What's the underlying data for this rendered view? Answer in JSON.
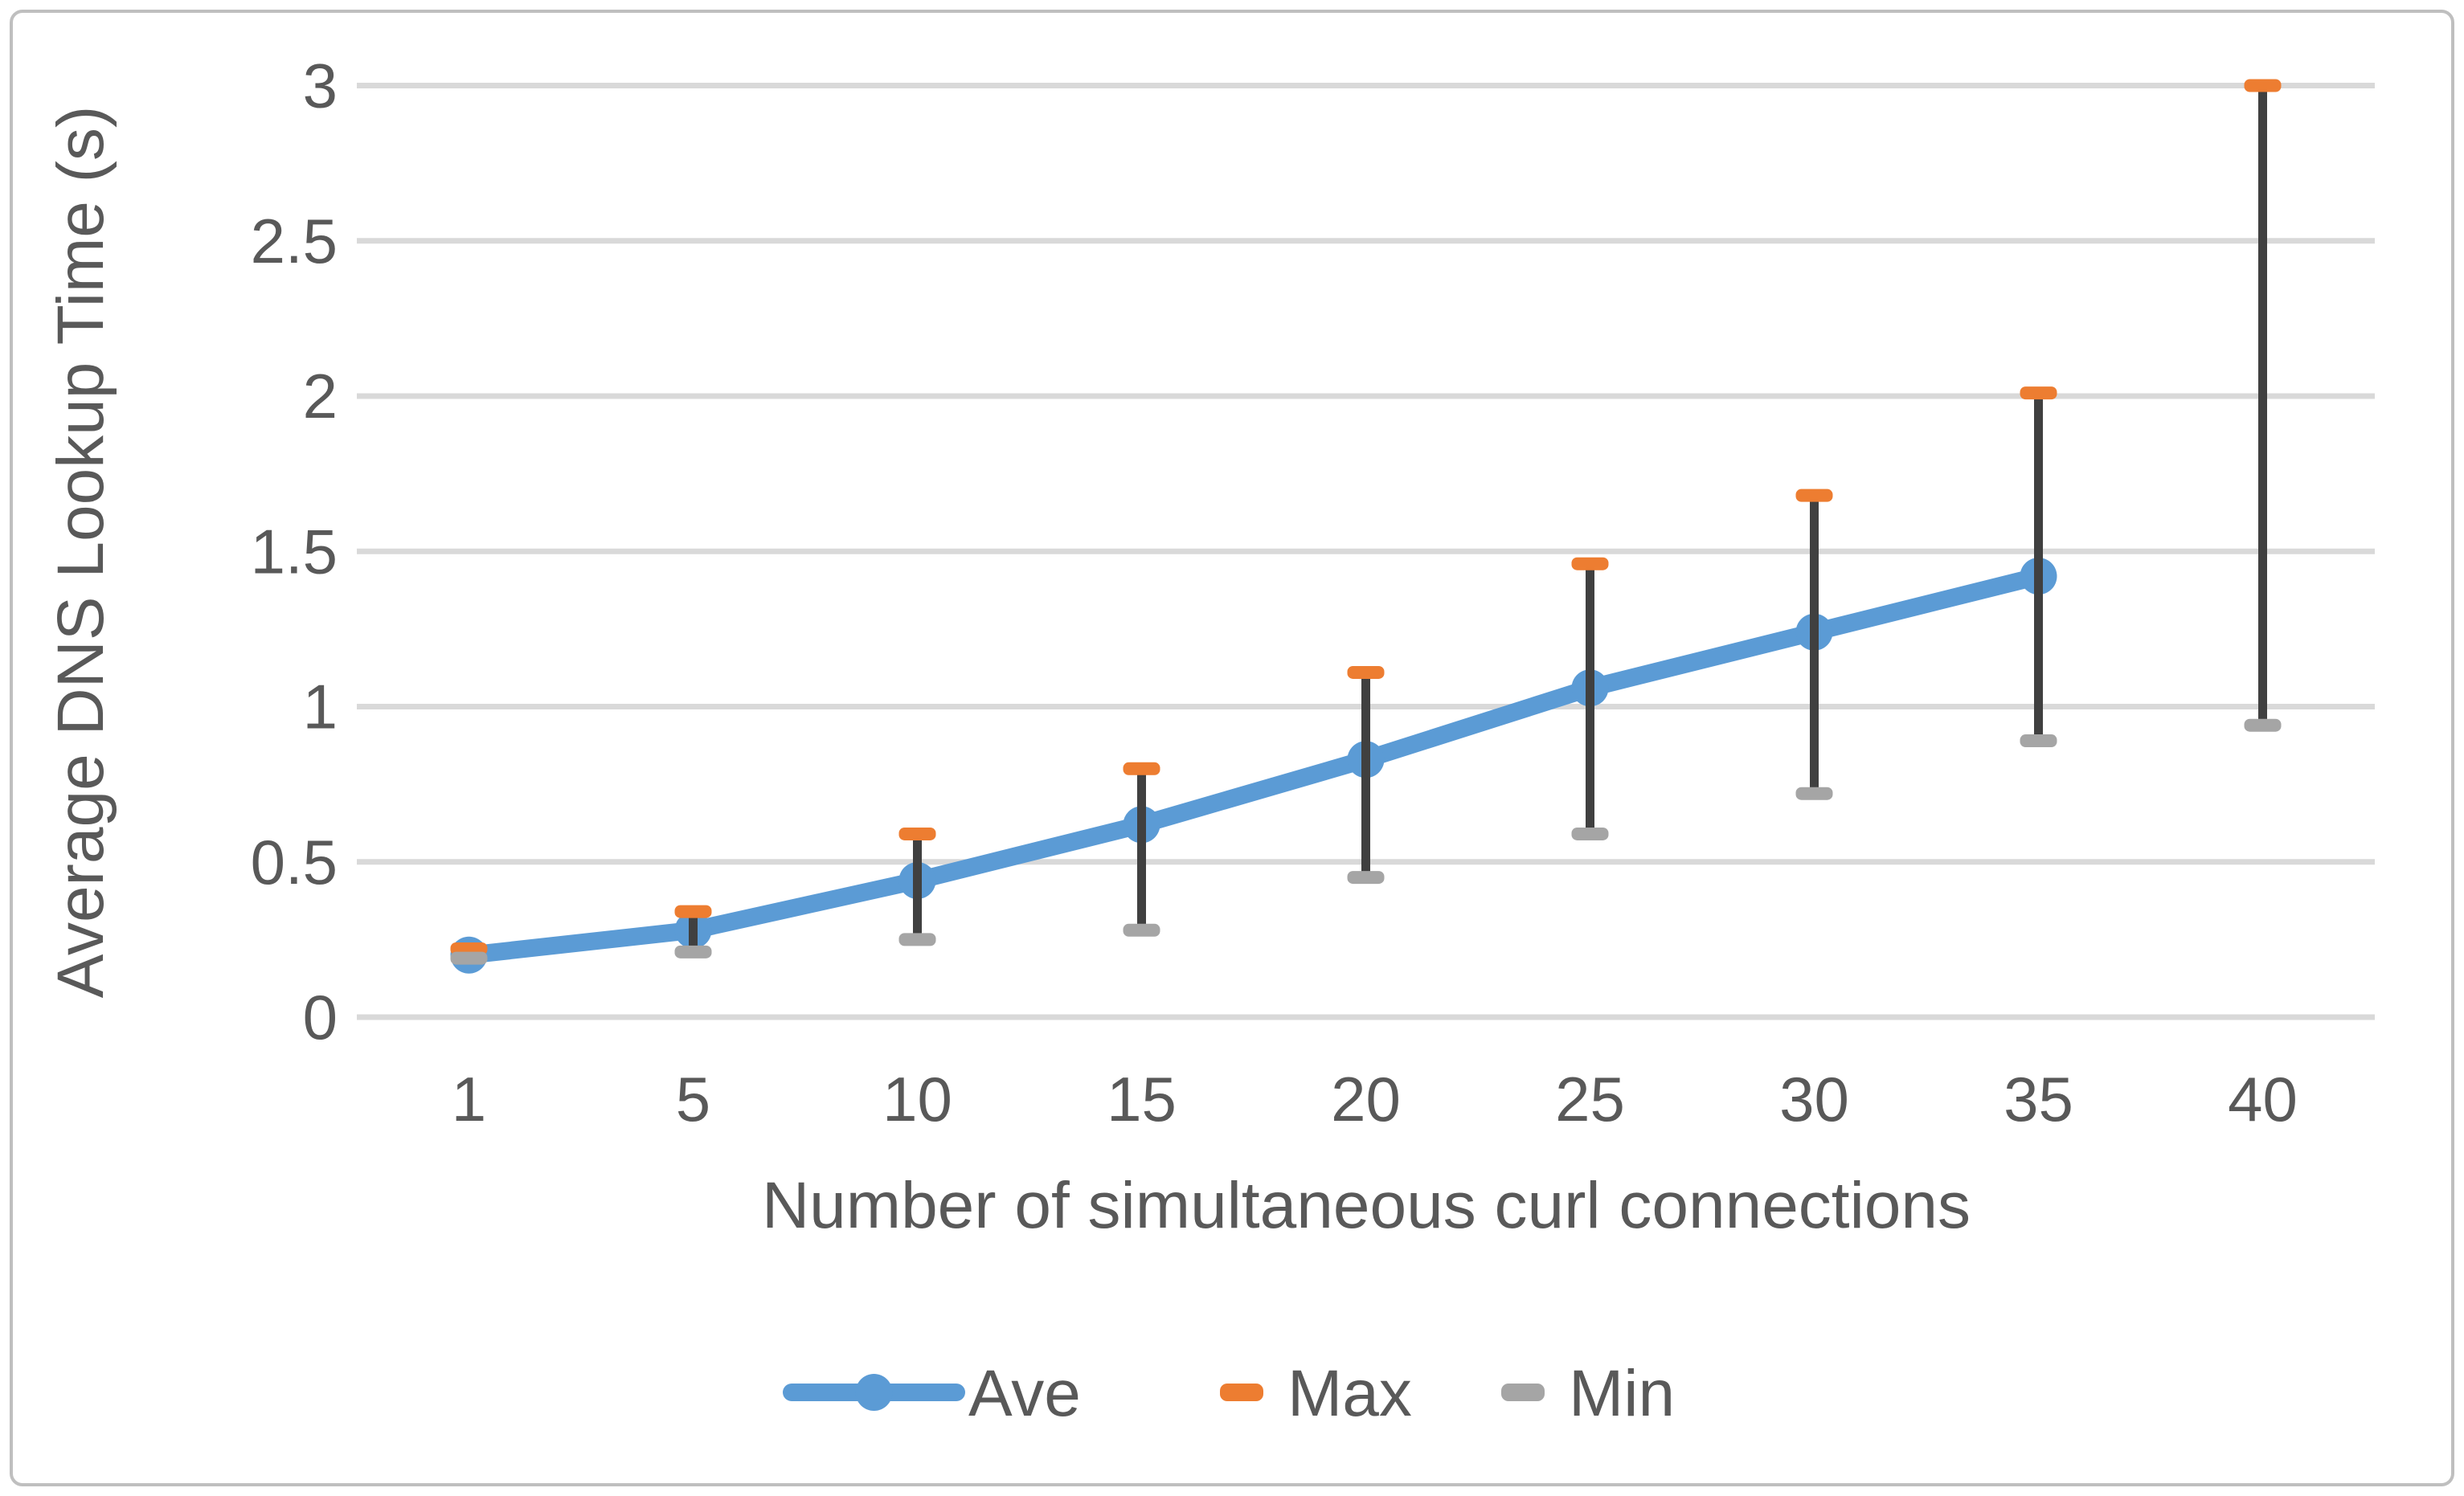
{
  "chart_data": {
    "type": "line",
    "title": "",
    "xlabel": "Number of simultaneous curl connections",
    "ylabel": "Average DNS Lookup Time (s)",
    "categories": [
      1,
      5,
      10,
      15,
      20,
      25,
      30,
      35,
      40
    ],
    "x_tick_labels": [
      "1",
      "5",
      "10",
      "15",
      "20",
      "25",
      "30",
      "35",
      "40"
    ],
    "y_ticks": {
      "values": [
        0,
        0.5,
        1,
        1.5,
        2,
        2.5,
        3
      ],
      "labels": [
        "0",
        "0.5",
        "1",
        "1.5",
        "2",
        "2.5",
        "3"
      ]
    },
    "ylim": [
      0,
      3
    ],
    "grid": "horizontal",
    "series": [
      {
        "name": "Ave",
        "type": "line",
        "color": "#5B9BD5",
        "values": [
          0.2,
          0.28,
          0.44,
          0.62,
          0.83,
          1.06,
          1.24,
          1.42,
          null
        ]
      },
      {
        "name": "Max",
        "type": "cap",
        "role": "max",
        "color": "#ED7D31",
        "values": [
          0.22,
          0.34,
          0.59,
          0.8,
          1.11,
          1.46,
          1.68,
          2.01,
          3.0
        ]
      },
      {
        "name": "Min",
        "type": "cap",
        "role": "min",
        "color": "#A5A5A5",
        "values": [
          0.19,
          0.21,
          0.25,
          0.28,
          0.45,
          0.59,
          0.72,
          0.89,
          0.94
        ]
      }
    ],
    "error_bars": {
      "high_series": "Max",
      "low_series": "Min",
      "color": "#404040"
    },
    "legend": {
      "position": "bottom-center",
      "entries": [
        {
          "label": "Ave",
          "swatch": "line-marker",
          "color": "#5B9BD5"
        },
        {
          "label": "Max",
          "swatch": "dash",
          "color": "#ED7D31"
        },
        {
          "label": "Min",
          "swatch": "dash",
          "color": "#A5A5A5"
        }
      ]
    },
    "colors": {
      "gridline": "#D9D9D9",
      "text": "#595959",
      "border": "#BFBFBF",
      "background": "#FFFFFF"
    }
  }
}
